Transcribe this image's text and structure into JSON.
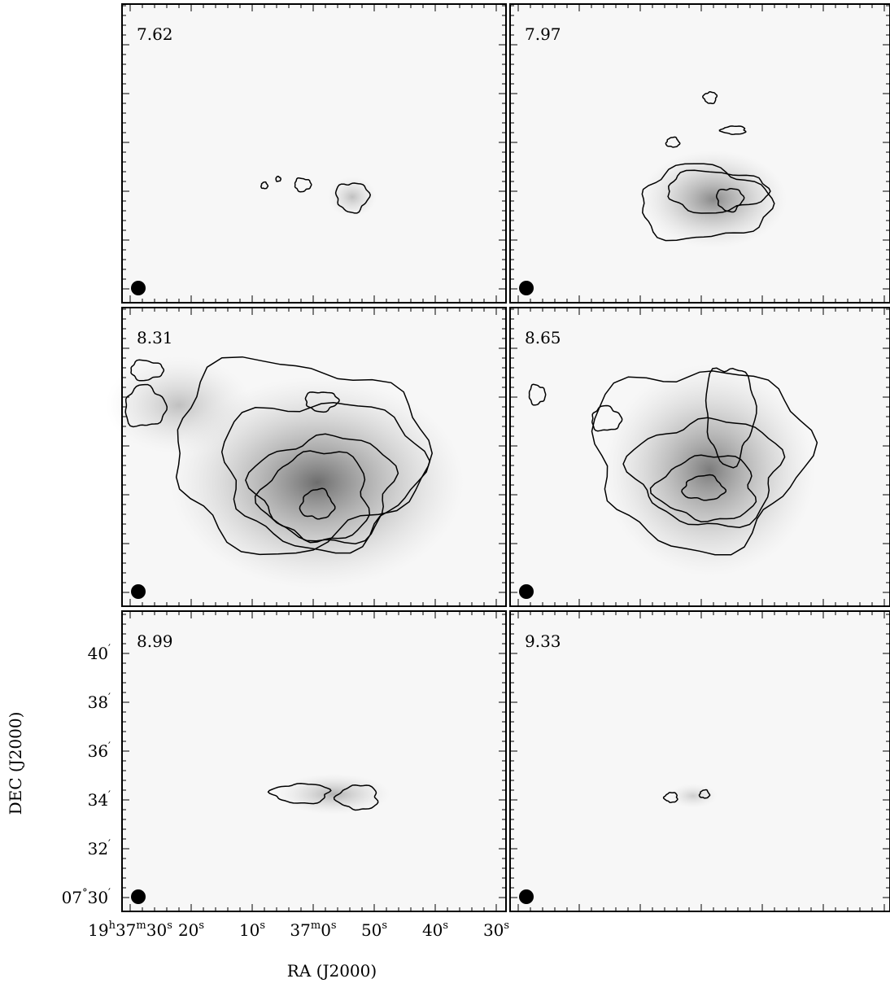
{
  "panels": [
    {
      "label": "7.62"
    },
    {
      "label": "7.97"
    },
    {
      "label": "8.31"
    },
    {
      "label": "8.65"
    },
    {
      "label": "8.99"
    },
    {
      "label": "9.33"
    }
  ],
  "x_axis": {
    "title": "RA (J2000)",
    "ticks": [
      {
        "parts": [
          "19",
          "h",
          "37",
          "m",
          "30",
          "s"
        ]
      },
      {
        "parts": [
          "20",
          "s"
        ]
      },
      {
        "parts": [
          "10",
          "s"
        ]
      },
      {
        "parts": [
          "37",
          "m",
          "0",
          "s"
        ]
      },
      {
        "parts": [
          "50",
          "s"
        ]
      },
      {
        "parts": [
          "40",
          "s"
        ]
      },
      {
        "parts": [
          "30",
          "s"
        ]
      }
    ]
  },
  "y_axis": {
    "title": "DEC (J2000)",
    "ticks": [
      {
        "parts": [
          "40",
          "′"
        ]
      },
      {
        "parts": [
          "38",
          "′"
        ]
      },
      {
        "parts": [
          "36",
          "′"
        ]
      },
      {
        "parts": [
          "34",
          "′"
        ]
      },
      {
        "parts": [
          "32",
          "′"
        ]
      },
      {
        "parts": [
          "07",
          "°",
          "30",
          "′"
        ]
      }
    ]
  }
}
